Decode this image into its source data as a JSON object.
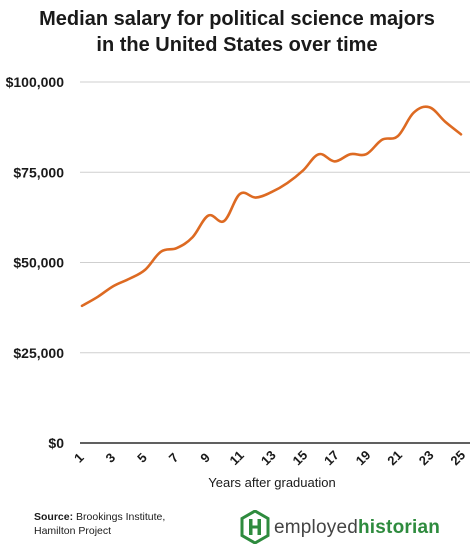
{
  "title_line1": "Median salary for political science majors",
  "title_line2": "in the United States over time",
  "source_label": "Source:",
  "source_line1": "Brookings Institute,",
  "source_line2": "Hamilton Project",
  "brand_part1": "employed",
  "brand_part2": "historian",
  "colors": {
    "line": "#dd6a22",
    "axis": "#000000",
    "grid": "#cfcfcf",
    "brand_green": "#2e8b3e"
  },
  "chart_data": {
    "type": "line",
    "title": "Median salary for political science majors in the United States over time",
    "xlabel": "Years after graduation",
    "ylabel": "",
    "ylim": [
      0,
      100000
    ],
    "xlim": [
      1,
      25
    ],
    "y_ticks": [
      {
        "value": 0,
        "label": "$0"
      },
      {
        "value": 25000,
        "label": "$25,000"
      },
      {
        "value": 50000,
        "label": "$50,000"
      },
      {
        "value": 75000,
        "label": "$75,000"
      },
      {
        "value": 100000,
        "label": "$100,000"
      }
    ],
    "x_tick_labels": [
      "1",
      "3",
      "5",
      "7",
      "9",
      "11",
      "13",
      "15",
      "17",
      "19",
      "21",
      "23",
      "25"
    ],
    "grid": "horizontal",
    "series": [
      {
        "x": [
          1,
          2,
          3,
          4,
          5,
          6,
          7,
          8,
          9,
          10,
          11,
          12,
          13,
          14,
          15,
          16,
          17,
          18,
          19,
          20,
          21,
          22,
          23,
          24,
          25
        ],
        "values": [
          38000,
          40500,
          43500,
          45500,
          48000,
          53000,
          54000,
          57000,
          63000,
          61500,
          69000,
          68000,
          69500,
          72000,
          75500,
          80000,
          78000,
          80000,
          80000,
          84000,
          85000,
          91500,
          93000,
          89000,
          85500
        ]
      }
    ]
  }
}
